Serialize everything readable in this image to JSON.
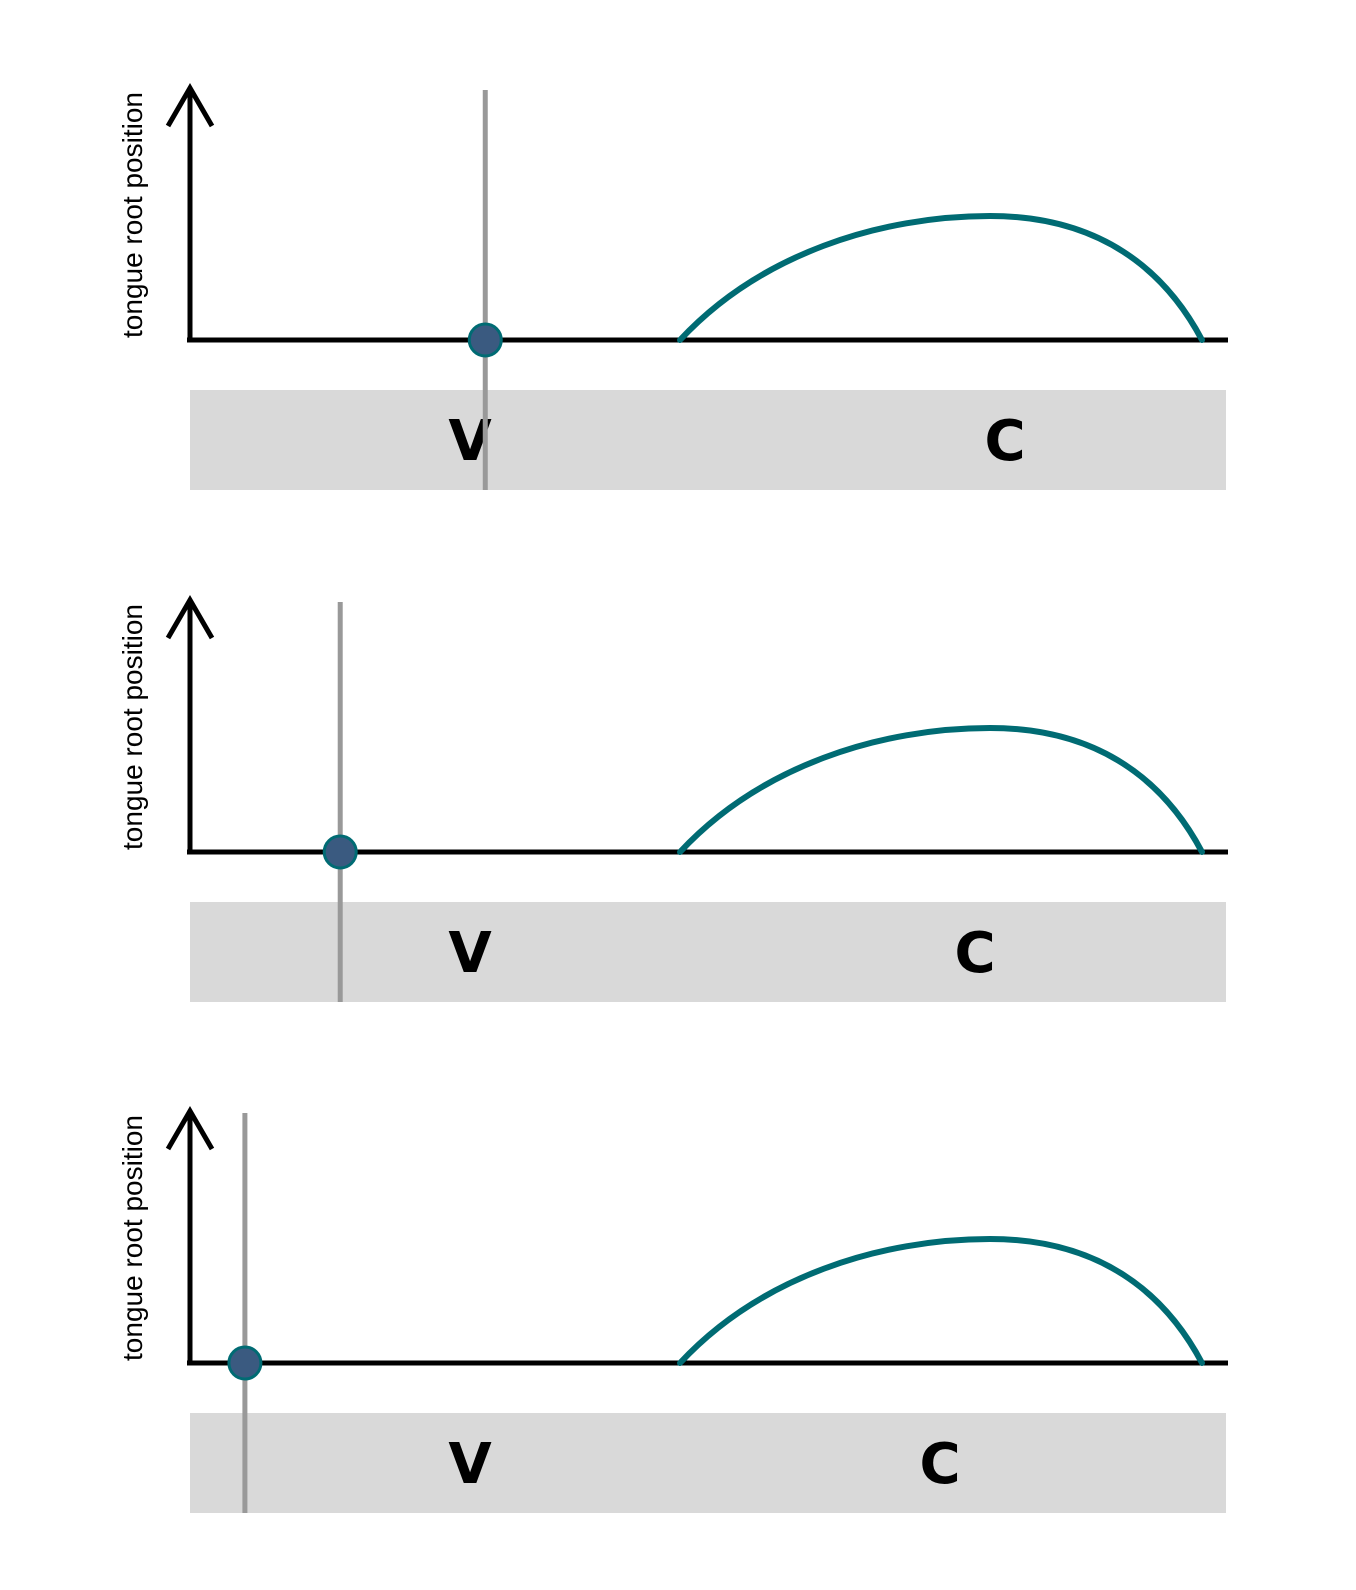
{
  "colors": {
    "axis": "#000000",
    "curve": "#006b73",
    "point": "#3a5a80",
    "cursor": "#999999",
    "bar": "#d9d9d9",
    "overlap": "#84adb1"
  },
  "panels": [
    {
      "ylabel": "tongue root position",
      "vowel_label": "V",
      "consonant_label": "C",
      "cursor_fraction": 0.285
    },
    {
      "ylabel": "tongue root position",
      "vowel_label": "V",
      "consonant_label": "C",
      "cursor_fraction": 0.145
    },
    {
      "ylabel": "tongue root position",
      "vowel_label": "V",
      "consonant_label": "C",
      "cursor_fraction": 0.053
    }
  ]
}
